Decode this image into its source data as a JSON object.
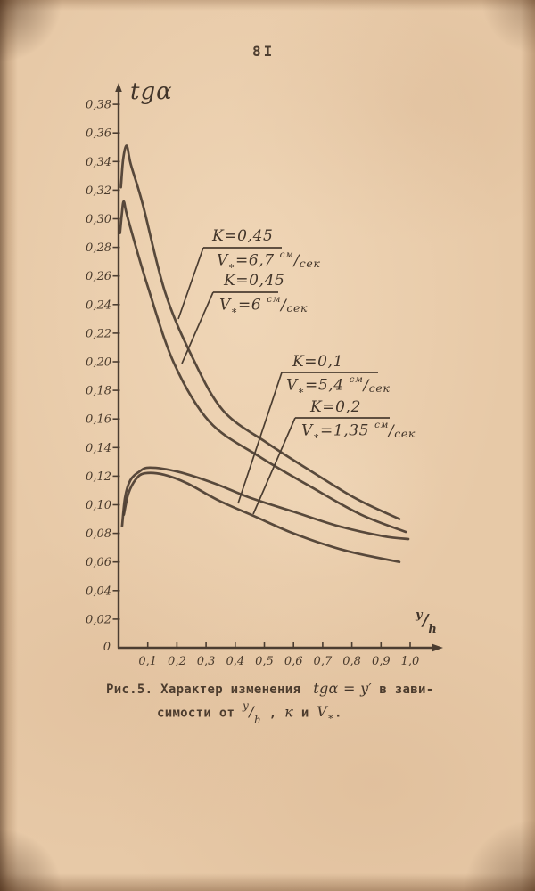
{
  "page": {
    "number": "8I"
  },
  "axis": {
    "y_title": "tgα",
    "x_title_num": "у",
    "x_title_den": "h",
    "origin_label": "0"
  },
  "chart_data": {
    "type": "line",
    "title": "",
    "ylabel": "tgα",
    "xlabel": "y/h",
    "xlim": [
      0,
      1.05
    ],
    "ylim": [
      0,
      0.385
    ],
    "grid": false,
    "legend_position": "inline-annotations",
    "y_ticks": [
      "0,38",
      "0,36",
      "0,34",
      "0,32",
      "0,30",
      "0,28",
      "0,26",
      "0,24",
      "0,22",
      "0,20",
      "0,18",
      "0,16",
      "0,14",
      "0,12",
      "0,10",
      "0,08",
      "0,06",
      "0,04",
      "0,02"
    ],
    "x_ticks": [
      "0,1",
      "0,2",
      "0,3",
      "0,4",
      "0,5",
      "0,6",
      "0,7",
      "0,8",
      "0,9",
      "1,0"
    ],
    "series": [
      {
        "name": "K=0,45; V*=6,7 см/сек",
        "points": [
          [
            0.008,
            0.322
          ],
          [
            0.016,
            0.342
          ],
          [
            0.028,
            0.351
          ],
          [
            0.042,
            0.338
          ],
          [
            0.083,
            0.31
          ],
          [
            0.159,
            0.249
          ],
          [
            0.251,
            0.204
          ],
          [
            0.358,
            0.166
          ],
          [
            0.511,
            0.143
          ],
          [
            0.664,
            0.123
          ],
          [
            0.817,
            0.104
          ],
          [
            0.963,
            0.09
          ]
        ]
      },
      {
        "name": "K=0,45; V*=6 см/сек",
        "points": [
          [
            0.005,
            0.29
          ],
          [
            0.011,
            0.303
          ],
          [
            0.018,
            0.312
          ],
          [
            0.032,
            0.3
          ],
          [
            0.098,
            0.254
          ],
          [
            0.19,
            0.199
          ],
          [
            0.312,
            0.158
          ],
          [
            0.48,
            0.134
          ],
          [
            0.664,
            0.112
          ],
          [
            0.832,
            0.093
          ],
          [
            0.985,
            0.081
          ]
        ]
      },
      {
        "name": "K=0,1; V*=5,4 см/сек",
        "points": [
          [
            0.012,
            0.085
          ],
          [
            0.022,
            0.105
          ],
          [
            0.04,
            0.117
          ],
          [
            0.07,
            0.123
          ],
          [
            0.107,
            0.126
          ],
          [
            0.205,
            0.123
          ],
          [
            0.327,
            0.115
          ],
          [
            0.45,
            0.105
          ],
          [
            0.602,
            0.095
          ],
          [
            0.755,
            0.085
          ],
          [
            0.908,
            0.078
          ],
          [
            0.994,
            0.076
          ]
        ]
      },
      {
        "name": "K=0,2; V*=1,35 см/сек",
        "points": [
          [
            0.018,
            0.093
          ],
          [
            0.034,
            0.108
          ],
          [
            0.06,
            0.118
          ],
          [
            0.09,
            0.122
          ],
          [
            0.156,
            0.121
          ],
          [
            0.235,
            0.115
          ],
          [
            0.343,
            0.103
          ],
          [
            0.465,
            0.092
          ],
          [
            0.587,
            0.081
          ],
          [
            0.71,
            0.072
          ],
          [
            0.817,
            0.066
          ],
          [
            0.963,
            0.06
          ]
        ]
      }
    ]
  },
  "curve_labels": [
    {
      "line1": "K=0,45",
      "v": "V",
      "sub": "∗",
      "val": "=6,7",
      "unit_sup": "см",
      "unit_den": "сек"
    },
    {
      "line1": "K=0,45",
      "v": "V",
      "sub": "∗",
      "val": "=6",
      "unit_sup": "см",
      "unit_den": "сек"
    },
    {
      "line1": "K=0,1",
      "v": "V",
      "sub": "∗",
      "val": "=5,4",
      "unit_sup": "см",
      "unit_den": "сек"
    },
    {
      "line1": "K=0,2",
      "v": "V",
      "sub": "∗",
      "val": "=1,35",
      "unit_sup": "см",
      "unit_den": "сек"
    }
  ],
  "caption": {
    "fig": "Рис.5.",
    "part1": "Характер изменения",
    "math1": "tgα = y′",
    "part2": "в зави-",
    "part3": "симости от",
    "math2_num": "у",
    "math2_den": "h",
    "comma": ",",
    "math3": "к",
    "part4": "и",
    "math4": "V",
    "math4_sub": "∗",
    "period": "."
  },
  "colors": {
    "paper": "#e7c9a7",
    "ink": "#4b3d31",
    "text": "#4c3c2e"
  }
}
